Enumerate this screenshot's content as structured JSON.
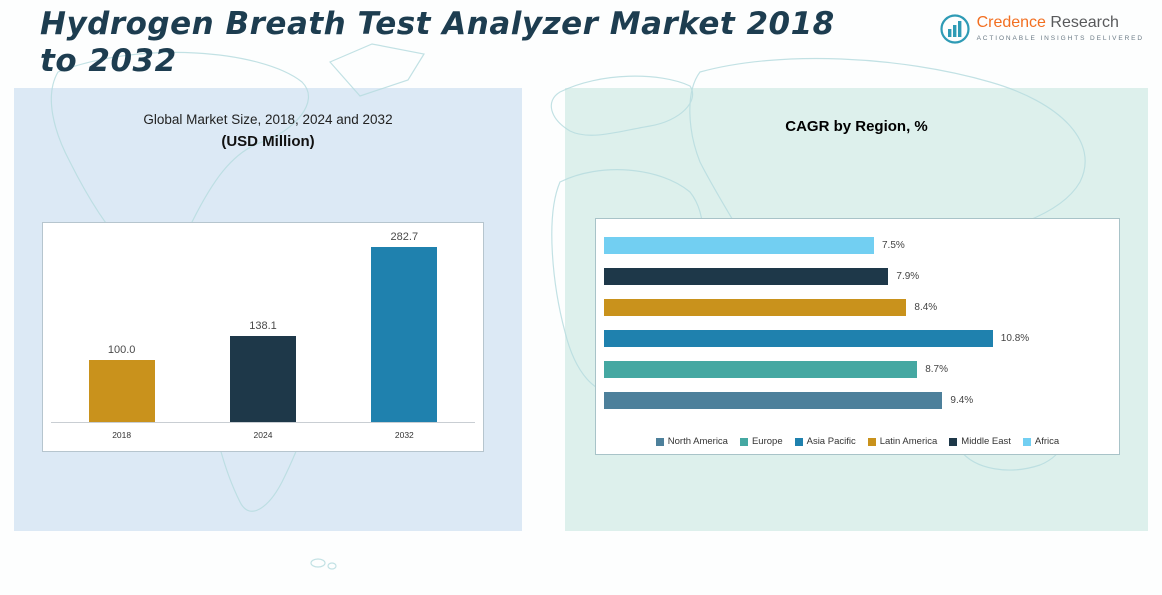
{
  "header": {
    "title": "Hydrogen Breath Test Analyzer Market 2018 to 2032",
    "logo": {
      "brand_primary": "Credence",
      "brand_secondary": " Research",
      "tagline": "Actionable Insights Delivered"
    }
  },
  "left_panel": {
    "subtitle_line1": "Global Market Size, 2018, 2024 and 2032",
    "subtitle_line2": "(USD Million)"
  },
  "right_panel": {
    "title": "CAGR by Region, %"
  },
  "colors": {
    "title_text": "#1d3d50",
    "gold": "#c9921c",
    "navy": "#1e3849",
    "blue": "#1f81ae",
    "teal": "#45a8a2",
    "steel_blue": "#4d809b",
    "light_blue": "#72cff2",
    "left_panel_bg": "#dce9f5",
    "right_panel_bg": "#ddf0ec"
  },
  "chart_data": [
    {
      "type": "bar",
      "title": "Global Market Size, 2018, 2024 and 2032 (USD Million)",
      "categories": [
        "2018",
        "2024",
        "2032"
      ],
      "values": [
        100.0,
        138.1,
        282.7
      ],
      "labels": [
        "100.0",
        "138.1",
        "282.7"
      ],
      "colors": [
        "#c9921c",
        "#1e3849",
        "#1f81ae"
      ],
      "xlabel": "",
      "ylabel": "USD Million",
      "ylim": [
        0,
        300
      ],
      "grid": false,
      "legend": "none"
    },
    {
      "type": "bar",
      "orientation": "horizontal",
      "title": "CAGR by Region, %",
      "rows": [
        {
          "region": "Africa",
          "value": 7.5,
          "label": "7.5%",
          "color": "#72cff2"
        },
        {
          "region": "Middle East",
          "value": 7.9,
          "label": "7.9%",
          "color": "#1e3849"
        },
        {
          "region": "Latin America",
          "value": 8.4,
          "label": "8.4%",
          "color": "#c9921c"
        },
        {
          "region": "Asia Pacific",
          "value": 10.8,
          "label": "10.8%",
          "color": "#1f81ae"
        },
        {
          "region": "Europe",
          "value": 8.7,
          "label": "8.7%",
          "color": "#45a8a2"
        },
        {
          "region": "North America",
          "value": 9.4,
          "label": "9.4%",
          "color": "#4d809b"
        }
      ],
      "legend": [
        {
          "label": "North America",
          "color": "#4d809b"
        },
        {
          "label": "Europe",
          "color": "#45a8a2"
        },
        {
          "label": "Asia Pacific",
          "color": "#1f81ae"
        },
        {
          "label": "Latin America",
          "color": "#c9921c"
        },
        {
          "label": "Middle East",
          "color": "#1e3849"
        },
        {
          "label": "Africa",
          "color": "#72cff2"
        }
      ],
      "legend_position": "bottom",
      "xlim": [
        0,
        12
      ],
      "grid": false
    }
  ]
}
